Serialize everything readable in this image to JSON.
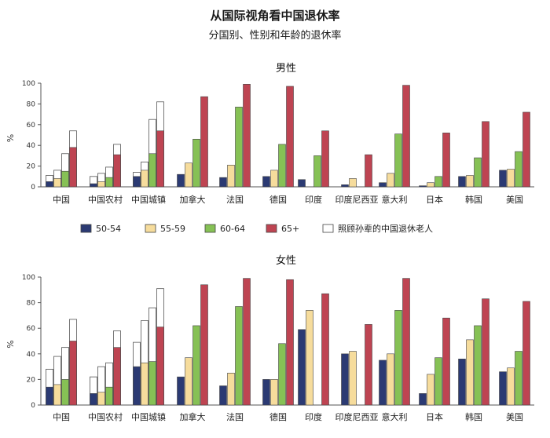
{
  "title": "从国际视角看中国退休率",
  "subtitle": "分国别、性别和年龄的退休率",
  "colors": {
    "s50_54": "#2b3a73",
    "s55_59": "#f6dc9c",
    "s60_64": "#86c155",
    "s65plus": "#be4452",
    "grandchild": "#ffffff"
  },
  "legend": [
    {
      "key": "s50_54",
      "label": "50-54"
    },
    {
      "key": "s55_59",
      "label": "55-59"
    },
    {
      "key": "s60_64",
      "label": "60-64"
    },
    {
      "key": "s65plus",
      "label": "65+"
    },
    {
      "key": "grandchild",
      "label": "照顾孙辈的中国退休老人"
    }
  ],
  "chart_data": [
    {
      "type": "bar",
      "title": "男性",
      "ylabel": "%",
      "ylim": [
        0,
        100
      ],
      "yticks": [
        0,
        20,
        40,
        60,
        80,
        100
      ],
      "categories": [
        "中国",
        "中国农村",
        "中国城镇",
        "加拿大",
        "法国",
        "德国",
        "印度",
        "印度尼西亚",
        "意大利",
        "日本",
        "韩国",
        "美国"
      ],
      "series": [
        {
          "name": "50-54",
          "key": "s50_54",
          "values": [
            5,
            3,
            10,
            12,
            9,
            10,
            7,
            2,
            4,
            1,
            10,
            16
          ]
        },
        {
          "name": "55-59",
          "key": "s55_59",
          "values": [
            8,
            5,
            16,
            23,
            21,
            16,
            null,
            8,
            13,
            4,
            11,
            17
          ]
        },
        {
          "name": "60-64",
          "key": "s60_64",
          "values": [
            15,
            9,
            32,
            46,
            77,
            41,
            30,
            null,
            51,
            10,
            28,
            34
          ]
        },
        {
          "name": "65+",
          "key": "s65plus",
          "values": [
            38,
            31,
            54,
            87,
            99,
            97,
            54,
            31,
            98,
            52,
            63,
            72
          ]
        }
      ],
      "grandchild_totals": {
        "50-54": [
          11,
          10,
          14,
          null,
          null,
          null,
          null,
          null,
          null,
          null,
          null,
          null
        ],
        "55-59": [
          16,
          13,
          24,
          null,
          null,
          null,
          null,
          null,
          null,
          null,
          null,
          null
        ],
        "60-64": [
          32,
          19,
          65,
          null,
          null,
          null,
          null,
          null,
          null,
          null,
          null,
          null
        ],
        "65+": [
          54,
          41,
          82,
          null,
          null,
          null,
          null,
          null,
          null,
          null,
          null,
          null
        ]
      }
    },
    {
      "type": "bar",
      "title": "女性",
      "ylabel": "%",
      "ylim": [
        0,
        100
      ],
      "yticks": [
        0,
        20,
        40,
        60,
        80,
        100
      ],
      "categories": [
        "中国",
        "中国农村",
        "中国城镇",
        "加拿大",
        "法国",
        "德国",
        "印度",
        "印度尼西亚",
        "意大利",
        "日本",
        "韩国",
        "美国"
      ],
      "series": [
        {
          "name": "50-54",
          "key": "s50_54",
          "values": [
            14,
            9,
            30,
            22,
            15,
            20,
            59,
            40,
            35,
            9,
            36,
            26
          ]
        },
        {
          "name": "55-59",
          "key": "s55_59",
          "values": [
            16,
            10,
            33,
            37,
            25,
            20,
            74,
            42,
            40,
            24,
            51,
            29
          ]
        },
        {
          "name": "60-64",
          "key": "s60_64",
          "values": [
            20,
            14,
            34,
            62,
            77,
            48,
            null,
            null,
            74,
            37,
            62,
            42
          ]
        },
        {
          "name": "65+",
          "key": "s65plus",
          "values": [
            50,
            45,
            61,
            94,
            99,
            98,
            87,
            63,
            99,
            68,
            83,
            81
          ]
        }
      ],
      "grandchild_totals": {
        "50-54": [
          28,
          22,
          49,
          null,
          null,
          null,
          null,
          null,
          null,
          null,
          null,
          null
        ],
        "55-59": [
          38,
          30,
          66,
          null,
          null,
          null,
          null,
          null,
          null,
          null,
          null,
          null
        ],
        "60-64": [
          45,
          33,
          76,
          null,
          null,
          null,
          null,
          null,
          null,
          null,
          null,
          null
        ],
        "65+": [
          67,
          58,
          91,
          null,
          null,
          null,
          null,
          null,
          null,
          null,
          null,
          null
        ]
      }
    }
  ]
}
